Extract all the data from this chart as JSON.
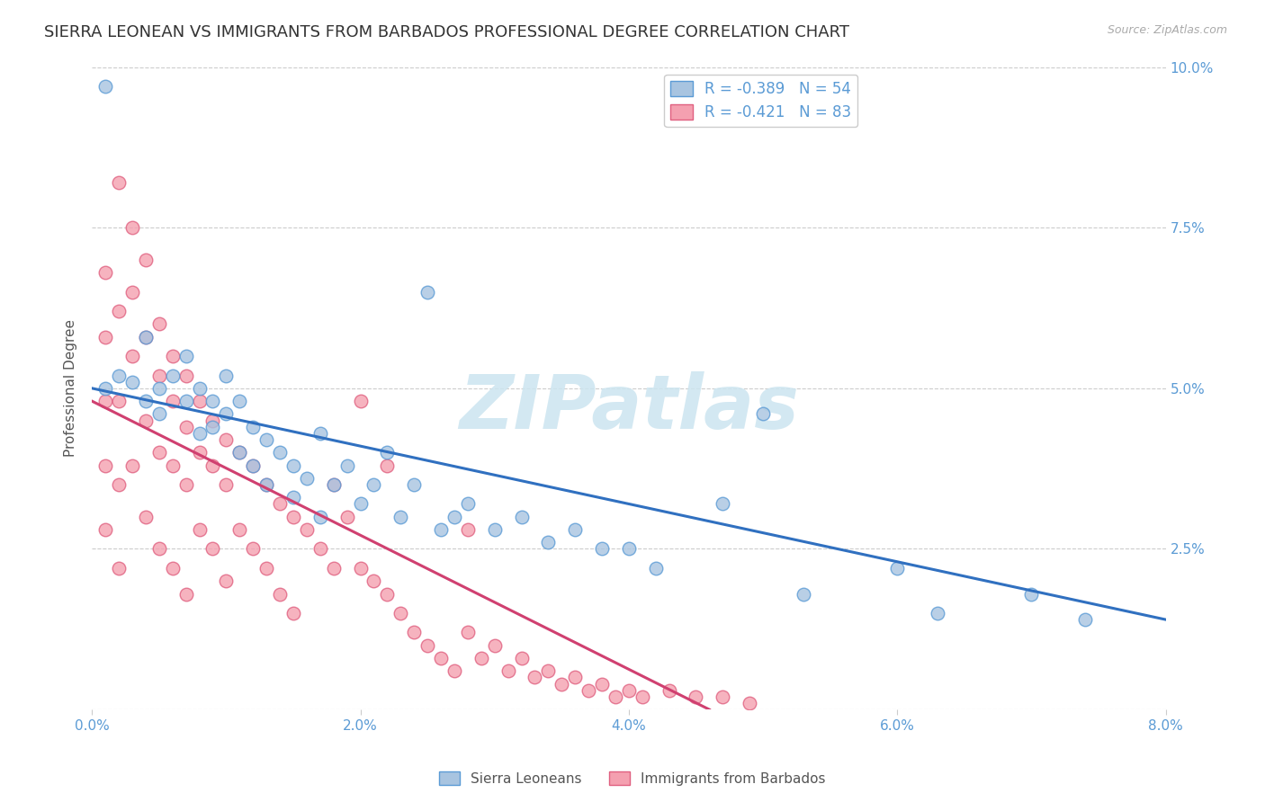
{
  "title": "SIERRA LEONEAN VS IMMIGRANTS FROM BARBADOS PROFESSIONAL DEGREE CORRELATION CHART",
  "source": "Source: ZipAtlas.com",
  "ylabel": "Professional Degree",
  "xlim": [
    0.0,
    0.08
  ],
  "ylim": [
    0.0,
    0.1
  ],
  "yticks": [
    0.0,
    0.025,
    0.05,
    0.075,
    0.1
  ],
  "ytick_labels_right": [
    "",
    "2.5%",
    "5.0%",
    "7.5%",
    "10.0%"
  ],
  "xticks": [
    0.0,
    0.02,
    0.04,
    0.06,
    0.08
  ],
  "xtick_labels": [
    "0.0%",
    "2.0%",
    "4.0%",
    "6.0%",
    "8.0%"
  ],
  "legend_entries": [
    {
      "label": "R = -0.389   N = 54",
      "color": "#a8c4e0",
      "edge": "#5b9bd5"
    },
    {
      "label": "R = -0.421   N = 83",
      "color": "#f4a0b0",
      "edge": "#e06080"
    }
  ],
  "series": [
    {
      "name": "Sierra Leoneans",
      "color": "#a8c4e0",
      "edge_color": "#5b9bd5",
      "x": [
        0.001,
        0.001,
        0.002,
        0.003,
        0.004,
        0.004,
        0.005,
        0.005,
        0.006,
        0.007,
        0.007,
        0.008,
        0.008,
        0.009,
        0.009,
        0.01,
        0.01,
        0.011,
        0.011,
        0.012,
        0.012,
        0.013,
        0.013,
        0.014,
        0.015,
        0.015,
        0.016,
        0.017,
        0.017,
        0.018,
        0.019,
        0.02,
        0.021,
        0.022,
        0.023,
        0.024,
        0.025,
        0.026,
        0.027,
        0.028,
        0.03,
        0.032,
        0.034,
        0.036,
        0.038,
        0.04,
        0.042,
        0.047,
        0.05,
        0.053,
        0.06,
        0.063,
        0.07,
        0.074
      ],
      "y": [
        0.097,
        0.05,
        0.052,
        0.051,
        0.058,
        0.048,
        0.05,
        0.046,
        0.052,
        0.055,
        0.048,
        0.05,
        0.043,
        0.048,
        0.044,
        0.052,
        0.046,
        0.048,
        0.04,
        0.044,
        0.038,
        0.042,
        0.035,
        0.04,
        0.038,
        0.033,
        0.036,
        0.043,
        0.03,
        0.035,
        0.038,
        0.032,
        0.035,
        0.04,
        0.03,
        0.035,
        0.065,
        0.028,
        0.03,
        0.032,
        0.028,
        0.03,
        0.026,
        0.028,
        0.025,
        0.025,
        0.022,
        0.032,
        0.046,
        0.018,
        0.022,
        0.015,
        0.018,
        0.014
      ]
    },
    {
      "name": "Immigrants from Barbados",
      "color": "#f4a0b0",
      "edge_color": "#e06080",
      "x": [
        0.001,
        0.001,
        0.001,
        0.001,
        0.001,
        0.002,
        0.002,
        0.002,
        0.002,
        0.002,
        0.003,
        0.003,
        0.003,
        0.003,
        0.004,
        0.004,
        0.004,
        0.004,
        0.005,
        0.005,
        0.005,
        0.005,
        0.006,
        0.006,
        0.006,
        0.006,
        0.007,
        0.007,
        0.007,
        0.007,
        0.008,
        0.008,
        0.008,
        0.009,
        0.009,
        0.009,
        0.01,
        0.01,
        0.01,
        0.011,
        0.011,
        0.012,
        0.012,
        0.013,
        0.013,
        0.014,
        0.014,
        0.015,
        0.015,
        0.016,
        0.017,
        0.018,
        0.018,
        0.019,
        0.02,
        0.021,
        0.022,
        0.023,
        0.024,
        0.025,
        0.026,
        0.027,
        0.028,
        0.029,
        0.03,
        0.031,
        0.032,
        0.033,
        0.034,
        0.035,
        0.036,
        0.037,
        0.038,
        0.039,
        0.04,
        0.041,
        0.043,
        0.045,
        0.047,
        0.049,
        0.02,
        0.022,
        0.028
      ],
      "y": [
        0.068,
        0.058,
        0.048,
        0.038,
        0.028,
        0.082,
        0.062,
        0.048,
        0.035,
        0.022,
        0.075,
        0.065,
        0.055,
        0.038,
        0.07,
        0.058,
        0.045,
        0.03,
        0.06,
        0.052,
        0.04,
        0.025,
        0.055,
        0.048,
        0.038,
        0.022,
        0.052,
        0.044,
        0.035,
        0.018,
        0.048,
        0.04,
        0.028,
        0.045,
        0.038,
        0.025,
        0.042,
        0.035,
        0.02,
        0.04,
        0.028,
        0.038,
        0.025,
        0.035,
        0.022,
        0.032,
        0.018,
        0.03,
        0.015,
        0.028,
        0.025,
        0.035,
        0.022,
        0.03,
        0.022,
        0.02,
        0.018,
        0.015,
        0.012,
        0.01,
        0.008,
        0.006,
        0.012,
        0.008,
        0.01,
        0.006,
        0.008,
        0.005,
        0.006,
        0.004,
        0.005,
        0.003,
        0.004,
        0.002,
        0.003,
        0.002,
        0.003,
        0.002,
        0.002,
        0.001,
        0.048,
        0.038,
        0.028
      ]
    }
  ],
  "trendline_blue": {
    "x_start": 0.0,
    "x_end": 0.08,
    "y_start": 0.05,
    "y_end": 0.014
  },
  "trendline_pink": {
    "x_start": 0.0,
    "x_end": 0.046,
    "y_start": 0.048,
    "y_end": 0.0
  },
  "watermark": "ZIPatlas",
  "watermark_color": "#cce5f0",
  "bg_color": "#ffffff",
  "grid_color": "#cccccc",
  "axis_color": "#5b9bd5",
  "title_color": "#333333",
  "title_fontsize": 13,
  "ylabel_color": "#555555",
  "ylabel_fontsize": 11
}
